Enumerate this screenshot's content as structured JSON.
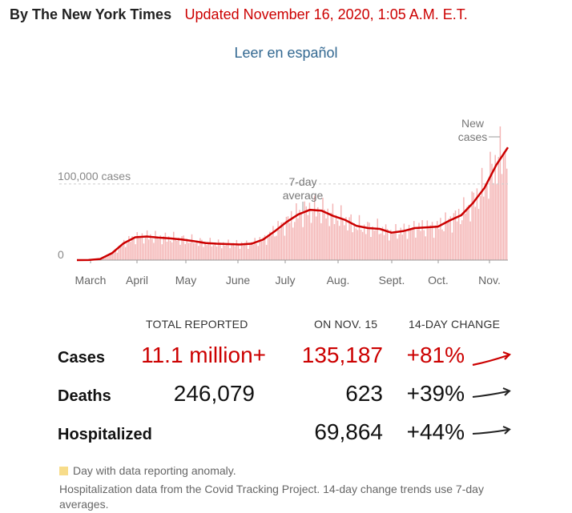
{
  "header": {
    "byline": "By The New York Times",
    "updated": "Updated November 16, 2020, 1:05 A.M. E.T.",
    "spanish_link": "Leer en español"
  },
  "colors": {
    "accent": "#cc0000",
    "bars": "#f4b4b4",
    "anomaly": "#f7dc8a",
    "link": "#326891"
  },
  "chart_data": {
    "type": "bar",
    "x_tick_labels": [
      "March",
      "April",
      "May",
      "June",
      "July",
      "Aug.",
      "Sept.",
      "Oct.",
      "Nov."
    ],
    "y_reference_label": "100,000 cases",
    "y_zero_label": "0",
    "ylim": [
      0,
      165000
    ],
    "annotations": {
      "average": "7-day\naverage",
      "new_cases": "New\ncases"
    },
    "series": [
      {
        "kind": "daily_bars"
      },
      {
        "kind": "7_day_average_line"
      }
    ],
    "weekly_average_points": [
      {
        "week": "Mar 1",
        "value": 40
      },
      {
        "week": "Mar 8",
        "value": 120
      },
      {
        "week": "Mar 15",
        "value": 1500
      },
      {
        "week": "Mar 22",
        "value": 9000
      },
      {
        "week": "Mar 29",
        "value": 22000
      },
      {
        "week": "Apr 5",
        "value": 30000
      },
      {
        "week": "Apr 12",
        "value": 31000
      },
      {
        "week": "Apr 19",
        "value": 29500
      },
      {
        "week": "Apr 26",
        "value": 28500
      },
      {
        "week": "May 3",
        "value": 27000
      },
      {
        "week": "May 10",
        "value": 25000
      },
      {
        "week": "May 17",
        "value": 22500
      },
      {
        "week": "May 24",
        "value": 21500
      },
      {
        "week": "May 31",
        "value": 21000
      },
      {
        "week": "Jun 7",
        "value": 20500
      },
      {
        "week": "Jun 14",
        "value": 21500
      },
      {
        "week": "Jun 21",
        "value": 27000
      },
      {
        "week": "Jun 28",
        "value": 38000
      },
      {
        "week": "Jul 5",
        "value": 50000
      },
      {
        "week": "Jul 12",
        "value": 60000
      },
      {
        "week": "Jul 19",
        "value": 66000
      },
      {
        "week": "Jul 26",
        "value": 65000
      },
      {
        "week": "Aug 2",
        "value": 58000
      },
      {
        "week": "Aug 9",
        "value": 53000
      },
      {
        "week": "Aug 16",
        "value": 45000
      },
      {
        "week": "Aug 23",
        "value": 42000
      },
      {
        "week": "Aug 30",
        "value": 41000
      },
      {
        "week": "Sep 6",
        "value": 36000
      },
      {
        "week": "Sep 13",
        "value": 38000
      },
      {
        "week": "Sep 20",
        "value": 42000
      },
      {
        "week": "Sep 27",
        "value": 43000
      },
      {
        "week": "Oct 4",
        "value": 44000
      },
      {
        "week": "Oct 11",
        "value": 52000
      },
      {
        "week": "Oct 18",
        "value": 59000
      },
      {
        "week": "Oct 25",
        "value": 75000
      },
      {
        "week": "Nov 1",
        "value": 95000
      },
      {
        "week": "Nov 8",
        "value": 125000
      },
      {
        "week": "Nov 15",
        "value": 148000
      }
    ]
  },
  "table": {
    "headers": {
      "total": "TOTAL REPORTED",
      "day": "ON NOV. 15",
      "change": "14-DAY CHANGE"
    },
    "rows": [
      {
        "label": "Cases",
        "total": "11.1 million+",
        "day": "135,187",
        "change": "+81%",
        "highlight": true
      },
      {
        "label": "Deaths",
        "total": "246,079",
        "day": "623",
        "change": "+39%",
        "highlight": false
      },
      {
        "label": "Hospitalized",
        "total": "",
        "day": "69,864",
        "change": "+44%",
        "highlight": false
      }
    ]
  },
  "footer": {
    "legend_label": "Day with data reporting anomaly.",
    "note": "Hospitalization data from the Covid Tracking Project. 14-day change trends use 7-day averages."
  }
}
